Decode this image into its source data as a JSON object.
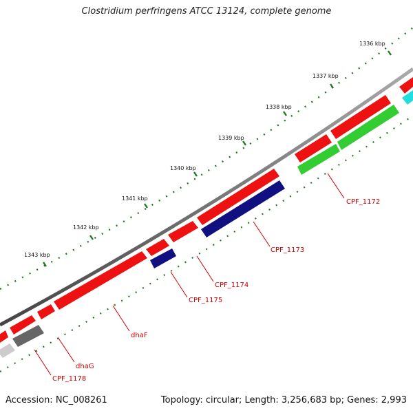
{
  "title": "Clostridium perfringens ATCC 13124, complete genome",
  "footer": {
    "accession": "Accession: NC_008261",
    "summary": "Topology: circular; Length: 3,256,683 bp; Genes: 2,993"
  },
  "scale_labels": [
    "1336 kbp",
    "1337 kbp",
    "1338 kbp",
    "1339 kbp",
    "1340 kbp",
    "1341 kbp",
    "1342 kbp",
    "1343 kbp"
  ],
  "gene_labels": [
    "CPF_1172",
    "CPF_1173",
    "CPF_1174",
    "CPF_1175",
    "dhaF",
    "dhaG",
    "CPF_1178"
  ],
  "colors": {
    "backbone": "#7a7a7a",
    "cds_forward": "#ee1111",
    "cds_reverse_blue": "#101080",
    "cds_reverse_green": "#33cc33",
    "cds_reverse_gray": "#666666",
    "cds_cyan": "#22dddd",
    "cds_light_gray": "#cccccc",
    "dot_green": "#227722",
    "label_red": "#cc0000"
  }
}
